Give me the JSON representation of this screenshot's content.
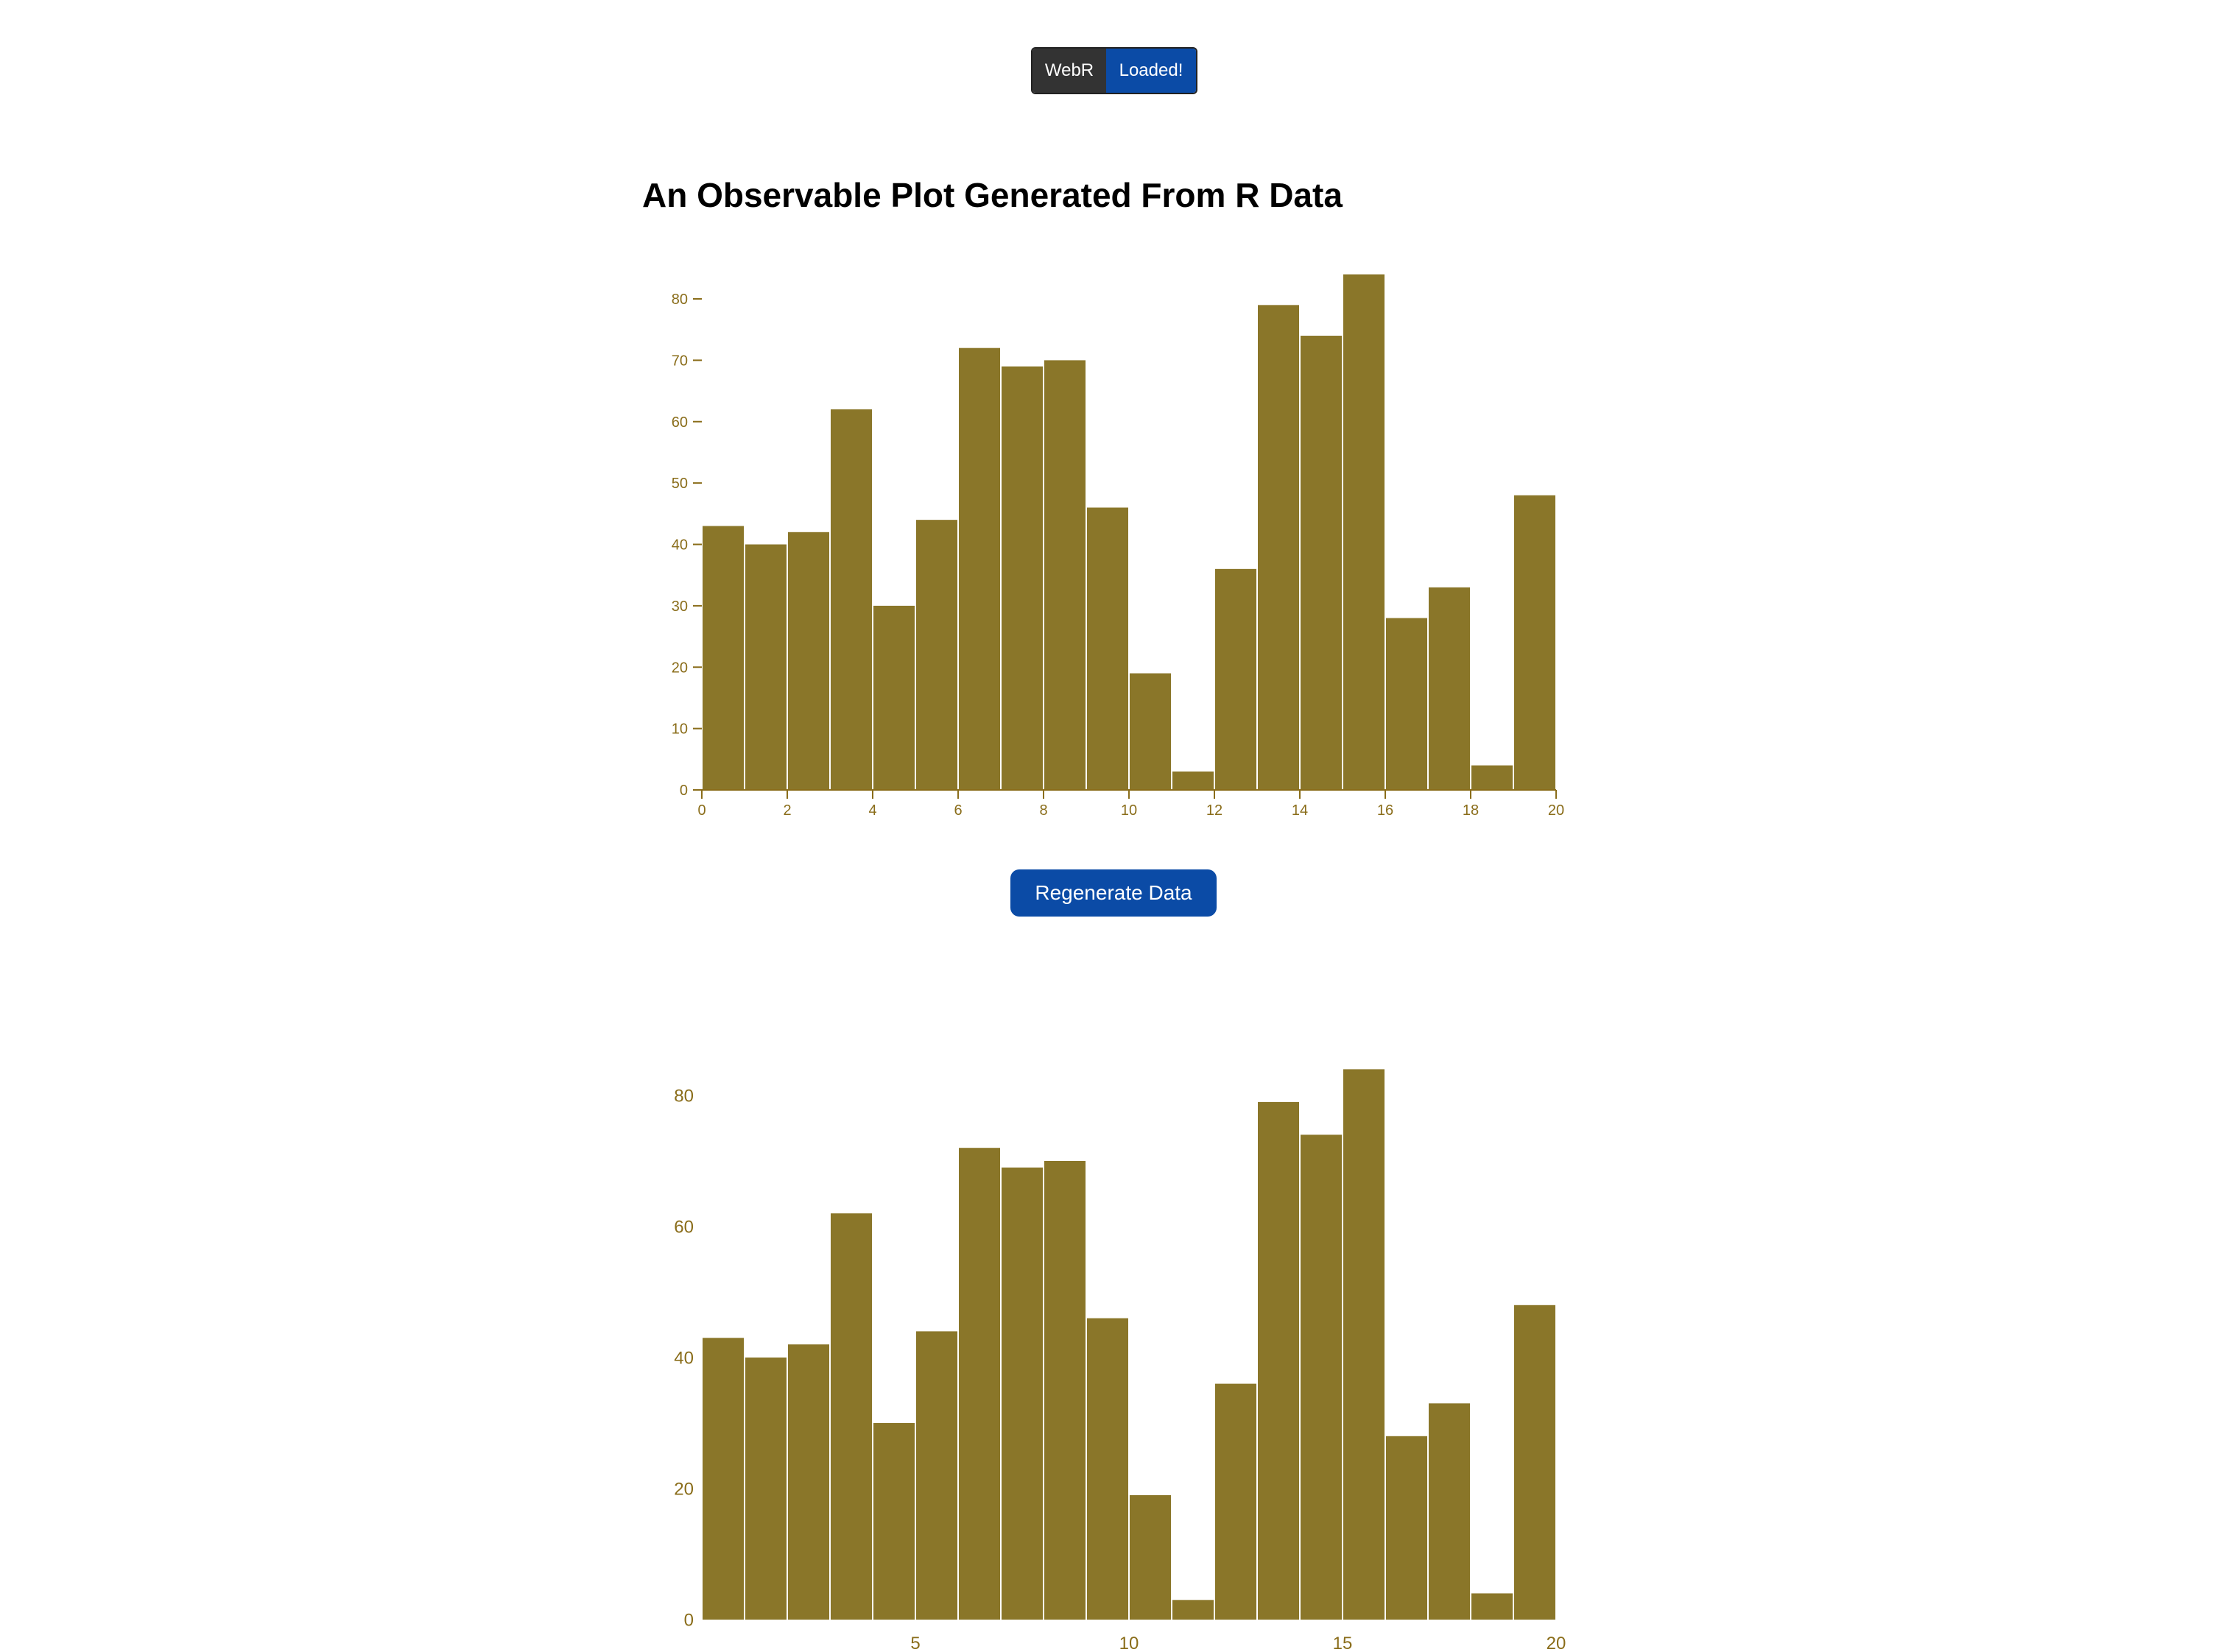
{
  "status_badge": {
    "label": "WebR",
    "value": "Loaded!"
  },
  "page_title": "An Observable Plot Generated From R Data",
  "regenerate_button": "Regenerate Data",
  "colors": {
    "bar_fill": "#8a7629",
    "axis_text": "#8a6d1a",
    "button_bg": "#0b4ba6",
    "badge_left_bg": "#333333",
    "badge_right_bg": "#0b4ba6"
  },
  "chart_data": [
    {
      "type": "bar",
      "histogram": true,
      "bin_edges": [
        0,
        1,
        2,
        3,
        4,
        5,
        6,
        7,
        8,
        9,
        10,
        11,
        12,
        13,
        14,
        15,
        16,
        17,
        18,
        19,
        20
      ],
      "values": [
        43,
        40,
        42,
        62,
        30,
        44,
        72,
        69,
        70,
        46,
        19,
        3,
        36,
        79,
        74,
        84,
        28,
        33,
        4,
        48
      ],
      "xlim": [
        0,
        20
      ],
      "ylim": [
        0,
        84
      ],
      "x_ticks": [
        0,
        2,
        4,
        6,
        8,
        10,
        12,
        14,
        16,
        18,
        20
      ],
      "y_ticks": [
        0,
        10,
        20,
        30,
        40,
        50,
        60,
        70,
        80
      ],
      "title": "",
      "xlabel": "",
      "ylabel": "",
      "grid": false
    },
    {
      "type": "bar",
      "histogram": true,
      "bin_edges": [
        0,
        1,
        2,
        3,
        4,
        5,
        6,
        7,
        8,
        9,
        10,
        11,
        12,
        13,
        14,
        15,
        16,
        17,
        18,
        19,
        20
      ],
      "values": [
        43,
        40,
        42,
        62,
        30,
        44,
        72,
        69,
        70,
        46,
        19,
        3,
        36,
        79,
        74,
        84,
        28,
        33,
        4,
        48
      ],
      "xlim": [
        0,
        20
      ],
      "ylim": [
        0,
        84
      ],
      "x_ticks": [
        5,
        10,
        15,
        20
      ],
      "y_ticks": [
        0,
        20,
        40,
        60,
        80
      ],
      "title": "",
      "xlabel": "",
      "ylabel": "",
      "grid": false
    }
  ]
}
